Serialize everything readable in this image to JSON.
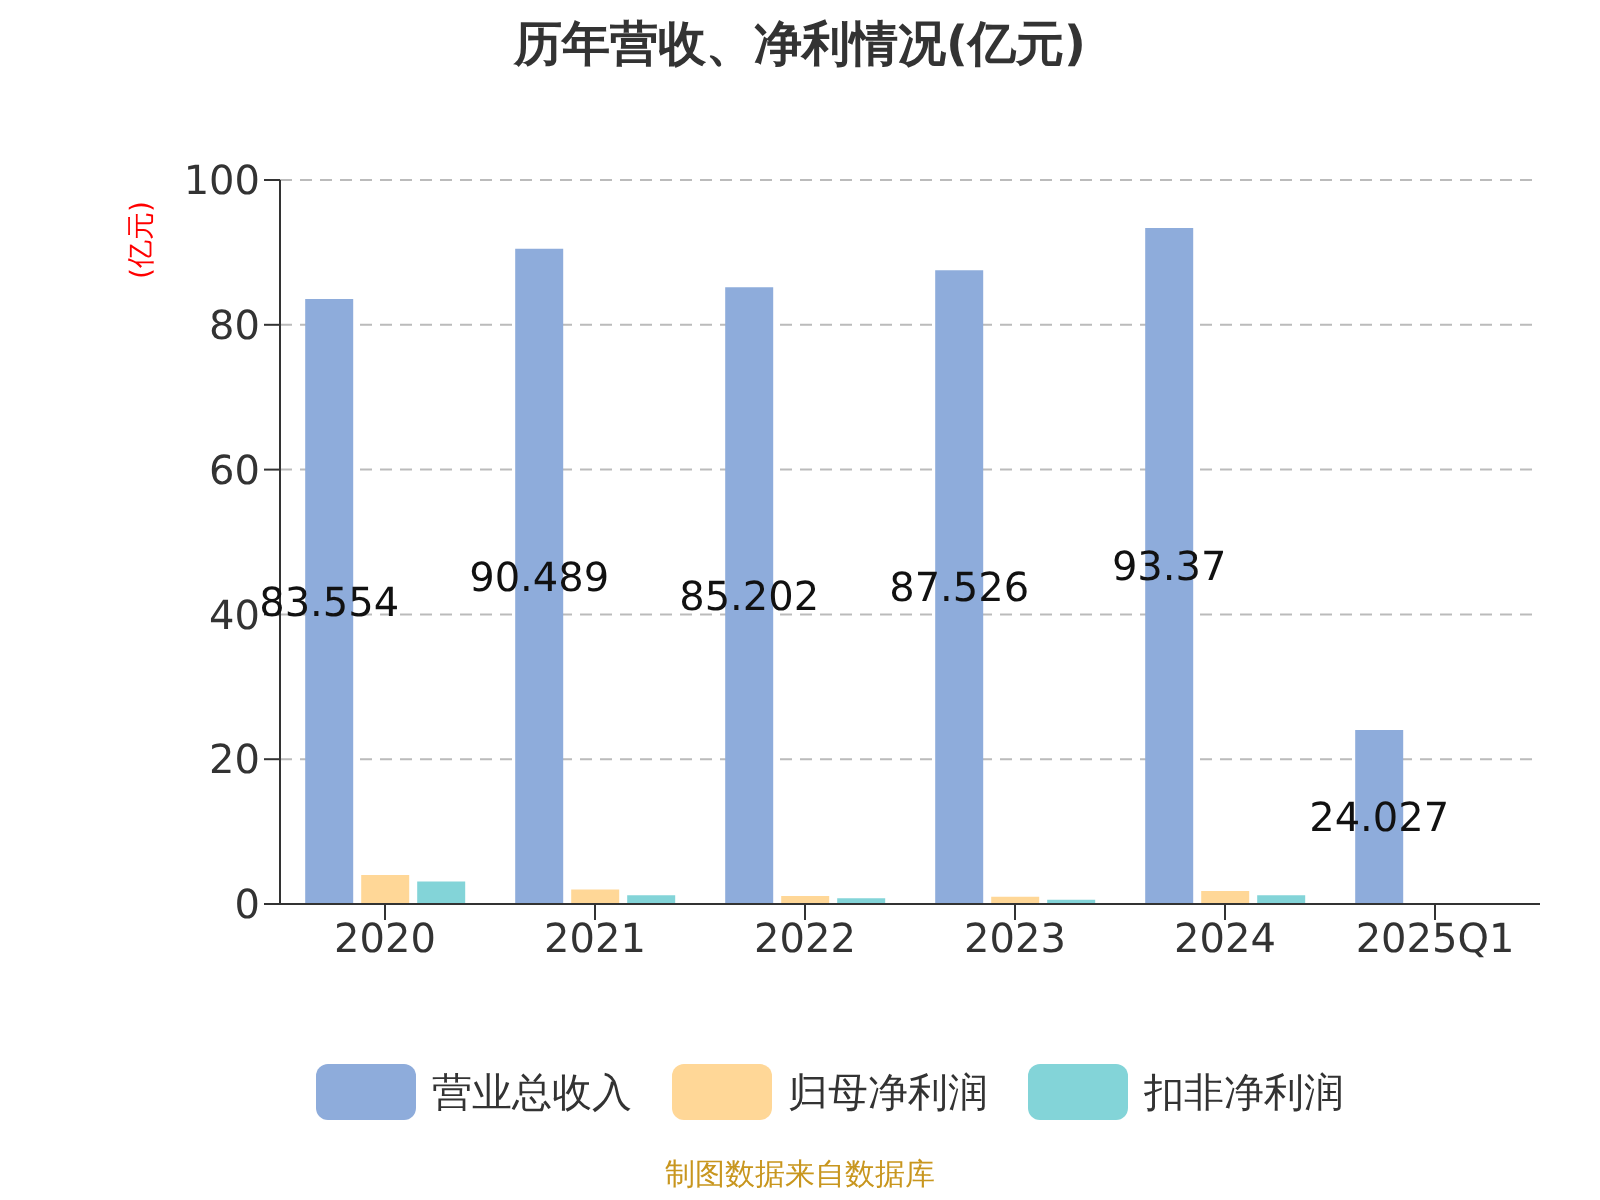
{
  "chart_data": {
    "type": "bar",
    "title": "历年营收、净利情况(亿元)",
    "ylabel": "(亿元)",
    "categories": [
      "2020",
      "2021",
      "2022",
      "2023",
      "2024",
      "2025Q1"
    ],
    "series": [
      {
        "name": "营业总收入",
        "color": "#8eacdb",
        "values": [
          83.554,
          90.489,
          85.202,
          87.526,
          93.37,
          24.027
        ],
        "value_labels": [
          "83.554",
          "90.489",
          "85.202",
          "87.526",
          "93.37",
          "24.027"
        ]
      },
      {
        "name": "归母净利润",
        "color": "#ffd797",
        "values": [
          4.0,
          2.0,
          1.1,
          1.0,
          1.8,
          null
        ]
      },
      {
        "name": "扣非净利润",
        "color": "#83d4d8",
        "values": [
          3.1,
          1.2,
          0.8,
          0.6,
          1.2,
          null
        ]
      }
    ],
    "ylim": [
      0,
      100
    ],
    "yticks": [
      0,
      20,
      40,
      60,
      80,
      100
    ],
    "grid": "y",
    "legend": "bottom",
    "annotations": [
      "制图数据来自数据库"
    ]
  }
}
